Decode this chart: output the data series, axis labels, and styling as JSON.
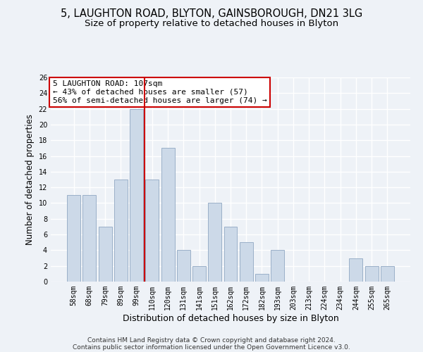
{
  "title": "5, LAUGHTON ROAD, BLYTON, GAINSBOROUGH, DN21 3LG",
  "subtitle": "Size of property relative to detached houses in Blyton",
  "xlabel": "Distribution of detached houses by size in Blyton",
  "ylabel": "Number of detached properties",
  "categories": [
    "58sqm",
    "68sqm",
    "79sqm",
    "89sqm",
    "99sqm",
    "110sqm",
    "120sqm",
    "131sqm",
    "141sqm",
    "151sqm",
    "162sqm",
    "172sqm",
    "182sqm",
    "193sqm",
    "203sqm",
    "213sqm",
    "224sqm",
    "234sqm",
    "244sqm",
    "255sqm",
    "265sqm"
  ],
  "values": [
    11,
    11,
    7,
    13,
    22,
    13,
    17,
    4,
    2,
    10,
    7,
    5,
    1,
    4,
    0,
    0,
    0,
    0,
    3,
    2,
    2
  ],
  "bar_color": "#ccd9e8",
  "bar_edge_color": "#9ab0c8",
  "vline_x_index": 4.5,
  "vline_color": "#cc0000",
  "annotation_text": "5 LAUGHTON ROAD: 107sqm\n← 43% of detached houses are smaller (57)\n56% of semi-detached houses are larger (74) →",
  "annotation_box_color": "#ffffff",
  "annotation_box_edge": "#cc0000",
  "ylim": [
    0,
    26
  ],
  "yticks": [
    0,
    2,
    4,
    6,
    8,
    10,
    12,
    14,
    16,
    18,
    20,
    22,
    24,
    26
  ],
  "footer_line1": "Contains HM Land Registry data © Crown copyright and database right 2024.",
  "footer_line2": "Contains public sector information licensed under the Open Government Licence v3.0.",
  "background_color": "#eef2f7",
  "grid_color": "#ffffff",
  "title_fontsize": 10.5,
  "subtitle_fontsize": 9.5,
  "xlabel_fontsize": 9,
  "ylabel_fontsize": 8.5,
  "tick_fontsize": 7,
  "annotation_fontsize": 8,
  "footer_fontsize": 6.5
}
